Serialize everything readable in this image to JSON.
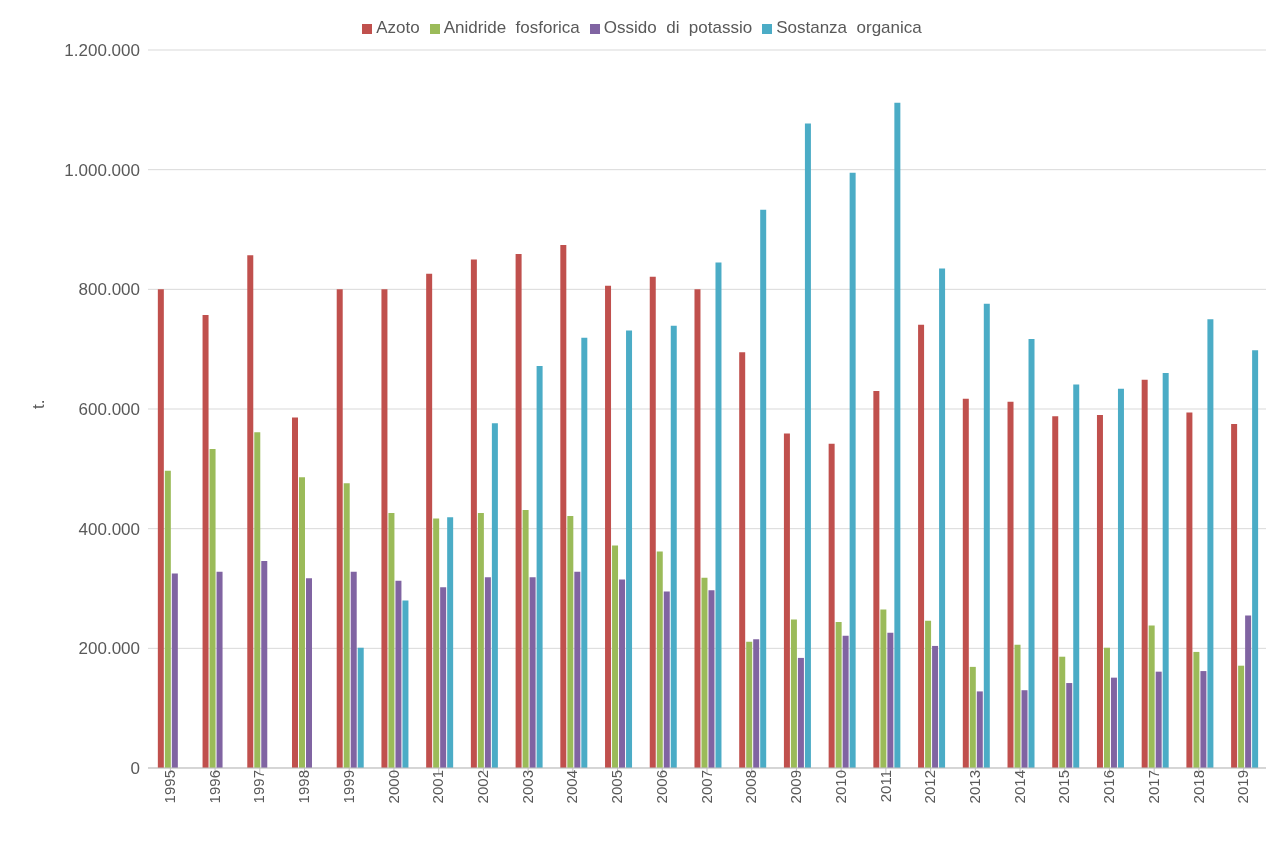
{
  "chart_data": {
    "type": "bar",
    "ylabel": "t.",
    "legend": "top",
    "grid": "y",
    "categories": [
      "1995",
      "1996",
      "1997",
      "1998",
      "1999",
      "2000",
      "2001",
      "2002",
      "2003",
      "2004",
      "2005",
      "2006",
      "2007",
      "2008",
      "2009",
      "2010",
      "2011",
      "2012",
      "2013",
      "2014",
      "2015",
      "2016",
      "2017",
      "2018",
      "2019"
    ],
    "ylim": [
      0,
      1200000
    ],
    "yticks": [
      {
        "value": 0,
        "label": "0"
      },
      {
        "value": 200000,
        "label": "200.000"
      },
      {
        "value": 400000,
        "label": "400.000"
      },
      {
        "value": 600000,
        "label": "600.000"
      },
      {
        "value": 800000,
        "label": "800.000"
      },
      {
        "value": 1000000,
        "label": "1.000.000"
      },
      {
        "value": 1200000,
        "label": "1.200.000"
      }
    ],
    "series": [
      {
        "name": "Azoto",
        "color": "#c0504d",
        "values": [
          800000,
          757000,
          857000,
          586000,
          800000,
          800000,
          826000,
          850000,
          859000,
          874000,
          806000,
          821000,
          800000,
          695000,
          559000,
          542000,
          630000,
          741000,
          617000,
          612000,
          588000,
          590000,
          649000,
          594000,
          575000
        ]
      },
      {
        "name": "Anidride  fosforica",
        "color": "#9bbb59",
        "values": [
          497000,
          533000,
          561000,
          486000,
          476000,
          426000,
          417000,
          426000,
          431000,
          421000,
          372000,
          362000,
          318000,
          211000,
          248000,
          244000,
          265000,
          246000,
          169000,
          206000,
          186000,
          201000,
          238000,
          194000,
          171000
        ]
      },
      {
        "name": "Ossido  di  potassio",
        "color": "#8064a2",
        "values": [
          325000,
          328000,
          346000,
          317000,
          328000,
          313000,
          302000,
          319000,
          319000,
          328000,
          315000,
          295000,
          297000,
          215000,
          184000,
          221000,
          226000,
          204000,
          128000,
          130000,
          142000,
          151000,
          161000,
          162000,
          255000
        ]
      },
      {
        "name": "Sostanza  organica",
        "color": "#4bacc6",
        "values": [
          null,
          null,
          null,
          null,
          201000,
          280000,
          419000,
          576000,
          672000,
          719000,
          731000,
          739000,
          845000,
          933000,
          1077000,
          995000,
          1112000,
          835000,
          776000,
          717000,
          641000,
          634000,
          660000,
          750000,
          698000
        ]
      }
    ]
  }
}
